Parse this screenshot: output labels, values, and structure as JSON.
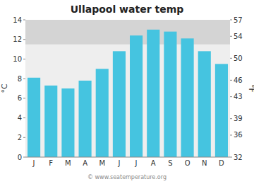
{
  "chart_data": {
    "type": "bar",
    "title": "Ullapool water temp",
    "categories": [
      "J",
      "F",
      "M",
      "A",
      "M",
      "J",
      "J",
      "A",
      "S",
      "O",
      "N",
      "D"
    ],
    "values": [
      8.1,
      7.3,
      7.0,
      7.8,
      9.0,
      10.8,
      12.4,
      13.0,
      12.8,
      12.1,
      10.8,
      9.5
    ],
    "color": "#45C4E0",
    "y_label": "°C",
    "y2_label": "°F",
    "ylim": [
      0,
      14
    ],
    "yticks": [
      0,
      2,
      4,
      6,
      8,
      10,
      12,
      14
    ],
    "y2lim": [
      32,
      57
    ],
    "y2ticks": [
      32,
      36,
      39,
      43,
      46,
      50,
      54,
      57
    ],
    "band": [
      11.5,
      14.0
    ],
    "band_color": "#d4d4d4",
    "grid": false,
    "watermark": "© www.seatemperature.org"
  }
}
